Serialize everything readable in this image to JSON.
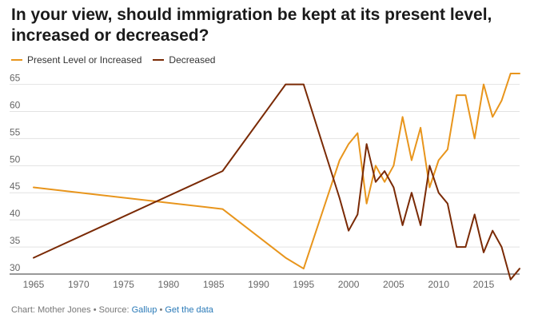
{
  "header": {
    "title_line1": "In your view, should immigration be kept at its present level,",
    "title_line2": "increased or decreased?"
  },
  "footer": {
    "prefix": "Chart: Mother Jones • Source: ",
    "source_link": "Gallup",
    "separator": " • ",
    "data_link": "Get the data"
  },
  "chart_data": {
    "type": "line",
    "xlim": [
      1965,
      2019
    ],
    "ylim": [
      30,
      67
    ],
    "x_ticks": [
      1965,
      1970,
      1975,
      1980,
      1985,
      1990,
      1995,
      2000,
      2005,
      2010,
      2015
    ],
    "y_ticks": [
      30,
      35,
      40,
      45,
      50,
      55,
      60,
      65
    ],
    "grid": true,
    "legend": "top-left",
    "series": [
      {
        "name": "Present Level or Increased",
        "color": "#e8951c",
        "x": [
          1965,
          1986,
          1993,
          1995,
          1999,
          2000,
          2001,
          2002,
          2003,
          2004,
          2005,
          2006,
          2007,
          2008,
          2009,
          2010,
          2011,
          2012,
          2013,
          2014,
          2015,
          2016,
          2017,
          2018,
          2019
        ],
        "y": [
          46,
          42,
          33,
          31,
          51,
          54,
          56,
          43,
          50,
          47,
          50,
          59,
          51,
          57,
          46,
          51,
          53,
          63,
          63,
          55,
          65,
          59,
          62,
          67,
          67
        ]
      },
      {
        "name": "Decreased",
        "color": "#7a2a05",
        "x": [
          1965,
          1986,
          1993,
          1995,
          1999,
          2000,
          2001,
          2002,
          2003,
          2004,
          2005,
          2006,
          2007,
          2008,
          2009,
          2010,
          2011,
          2012,
          2013,
          2014,
          2015,
          2016,
          2017,
          2018,
          2019
        ],
        "y": [
          33,
          49,
          65,
          65,
          44,
          38,
          41,
          54,
          47,
          49,
          46,
          39,
          45,
          39,
          50,
          45,
          43,
          35,
          35,
          41,
          34,
          38,
          35,
          29,
          31
        ]
      }
    ]
  }
}
